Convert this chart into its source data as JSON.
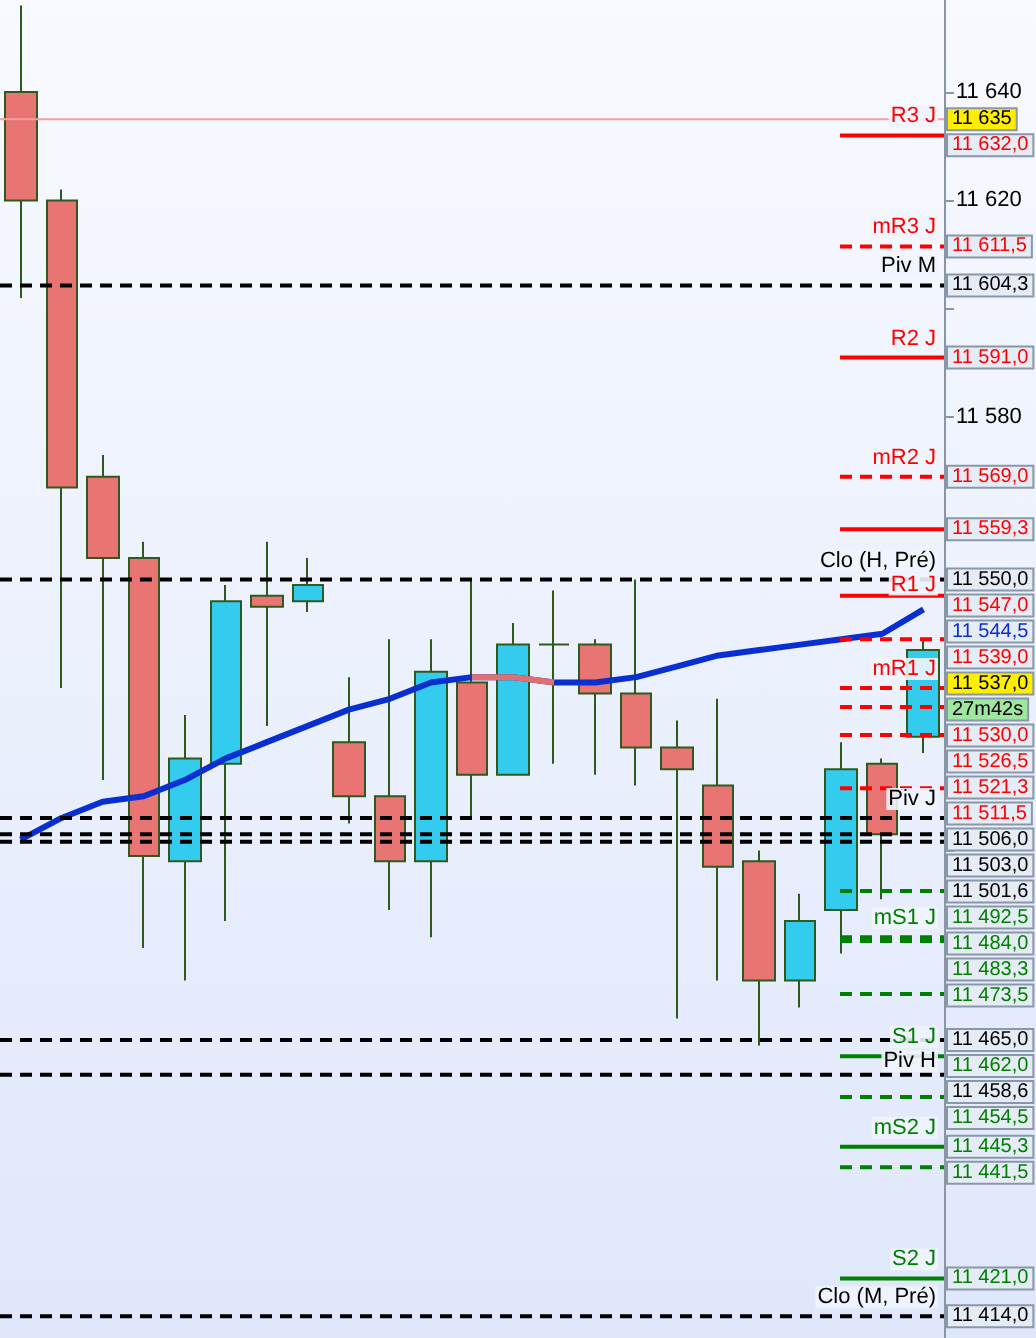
{
  "chart_data": {
    "type": "candlestick",
    "categories": [
      null,
      null,
      null,
      null,
      null,
      null,
      null,
      null,
      null,
      null,
      null,
      null,
      null,
      null,
      null,
      null,
      null,
      null,
      null,
      null,
      null,
      null,
      null
    ],
    "ohlc": [
      [
        11640,
        11656,
        11602,
        11620
      ],
      [
        11620,
        11622,
        11530,
        11567
      ],
      [
        11569,
        11573,
        11513,
        11554
      ],
      [
        11554,
        11557,
        11482,
        11499
      ],
      [
        11498,
        11525,
        11476,
        11517
      ],
      [
        11516,
        11549,
        11487,
        11546
      ],
      [
        11547,
        11557,
        11523,
        11545
      ],
      [
        11546,
        11554,
        11544,
        11549
      ],
      [
        11520,
        11532,
        11505,
        11510
      ],
      [
        11510,
        11539,
        11489,
        11498
      ],
      [
        11498,
        11539,
        11484,
        11533
      ],
      [
        11531,
        11550,
        11506,
        11514
      ],
      [
        11514,
        11542,
        11514,
        11538
      ],
      [
        11538,
        11548,
        11516,
        11538
      ],
      [
        11538,
        11539,
        11514,
        11529
      ],
      [
        11529,
        11550,
        11512,
        11519
      ],
      [
        11519,
        11524,
        11469,
        11515
      ],
      [
        11512,
        11528,
        11476,
        11497
      ],
      [
        11498,
        11500,
        11464,
        11476
      ],
      [
        11476,
        11492,
        11471,
        11487
      ],
      [
        11489,
        11520,
        11481,
        11515
      ],
      [
        11516,
        11517,
        11491,
        11503
      ],
      [
        11521,
        11539,
        11518,
        11537
      ]
    ],
    "colors": [
      "#e87474",
      "#e87474",
      "#e87474",
      "#e87474",
      "#33ccee",
      "#33ccee",
      "#e87474",
      "#33ccee",
      "#e87474",
      "#e87474",
      "#33ccee",
      "#e87474",
      "#33ccee",
      "#2e5a1c",
      "#e87474",
      "#e87474",
      "#e87474",
      "#e87474",
      "#e87474",
      "#33ccee",
      "#33ccee",
      "#e87474",
      "#33ccee"
    ],
    "series": [
      {
        "type": "line",
        "color": "#0a2fd0",
        "values": [
          11502,
          11506,
          11509,
          11510,
          11513,
          11517,
          11520,
          11523,
          11526,
          11528,
          11531,
          11532,
          11532,
          11531,
          11531,
          11532,
          11534,
          11536,
          11537,
          11538,
          11539,
          11540,
          11544.5
        ]
      },
      {
        "type": "line",
        "color": "#e07070",
        "values": [
          null,
          null,
          null,
          null,
          null,
          null,
          null,
          null,
          null,
          null,
          null,
          11532,
          11532,
          11531,
          null,
          null,
          null,
          null,
          null,
          null,
          null,
          null,
          null
        ]
      }
    ],
    "ylim": [
      11410,
      11657
    ],
    "yticks": [
      {
        "value": 11420,
        "label": null
      },
      {
        "value": 11440,
        "label": null
      },
      {
        "value": 11460,
        "label": null
      },
      {
        "value": 11480,
        "label": null
      },
      {
        "value": 11500,
        "label": null
      },
      {
        "value": 11520,
        "label": null
      },
      {
        "value": 11540,
        "label": null
      },
      {
        "value": 11560,
        "label": null
      },
      {
        "value": 11580,
        "label": "11 580"
      },
      {
        "value": 11600,
        "label": null
      },
      {
        "value": 11620,
        "label": "11 620"
      },
      {
        "value": 11640,
        "label": "11 640"
      }
    ],
    "tick_labels": "y",
    "grid": false,
    "marker": "none",
    "ref_lines": [
      {
        "axis": "y",
        "value": 11635,
        "label": null,
        "color": "#f4a0a0",
        "line_style": "solid"
      },
      {
        "axis": "y",
        "value": 11632,
        "label": "R3 J",
        "color": "#ff0000",
        "line_style": "solid"
      },
      {
        "axis": "y",
        "value": 11611.5,
        "label": "mR3 J",
        "color": "#ff0000",
        "line_style": "dashed"
      },
      {
        "axis": "y",
        "value": 11604.3,
        "label": "Piv M",
        "color": "#000000",
        "line_style": "dashed"
      },
      {
        "axis": "y",
        "value": 11591,
        "label": "R2 J",
        "color": "#ff0000",
        "line_style": "solid"
      },
      {
        "axis": "y",
        "value": 11569,
        "label": "mR2 J",
        "color": "#ff0000",
        "line_style": "dashed"
      },
      {
        "axis": "y",
        "value": 11559.3,
        "label": null,
        "color": "#ff0000",
        "line_style": "solid"
      },
      {
        "axis": "y",
        "value": 11550,
        "label": "Clo (H, Pré)",
        "color": "#000000",
        "line_style": "dashed"
      },
      {
        "axis": "y",
        "value": 11547,
        "label": "R1 J",
        "color": "#ff0000",
        "line_style": "solid"
      },
      {
        "axis": "y",
        "value": 11539,
        "label": null,
        "color": "#ff0000",
        "line_style": "dashed"
      },
      {
        "axis": "y",
        "value": 11530,
        "label": "mR1 J",
        "color": "#ff0000",
        "line_style": "dashed"
      },
      {
        "axis": "y",
        "value": 11526.5,
        "label": null,
        "color": "#ff0000",
        "line_style": "dashed"
      },
      {
        "axis": "y",
        "value": 11521.3,
        "label": null,
        "color": "#ff0000",
        "line_style": "dashed"
      },
      {
        "axis": "y",
        "value": 11511.5,
        "label": null,
        "color": "#ff0000",
        "line_style": "dashed"
      },
      {
        "axis": "y",
        "value": 11506,
        "label": "Piv J",
        "color": "#000000",
        "line_style": "dashed"
      },
      {
        "axis": "y",
        "value": 11503,
        "label": null,
        "color": "#000000",
        "line_style": "dashed"
      },
      {
        "axis": "y",
        "value": 11501.6,
        "label": null,
        "color": "#000000",
        "line_style": "dashed"
      },
      {
        "axis": "y",
        "value": 11492.5,
        "label": null,
        "color": "#008000",
        "line_style": "dashed"
      },
      {
        "axis": "y",
        "value": 11484,
        "label": "mS1 J",
        "color": "#008000",
        "line_style": "dashed"
      },
      {
        "axis": "y",
        "value": 11483.3,
        "label": null,
        "color": "#008000",
        "line_style": "dashed"
      },
      {
        "axis": "y",
        "value": 11473.5,
        "label": null,
        "color": "#008000",
        "line_style": "dashed"
      },
      {
        "axis": "y",
        "value": 11465,
        "label": null,
        "color": "#000000",
        "line_style": "dashed"
      },
      {
        "axis": "y",
        "value": 11462,
        "label": "S1 J",
        "color": "#008000",
        "line_style": "solid"
      },
      {
        "axis": "y",
        "value": 11458.6,
        "label": "Piv H",
        "color": "#000000",
        "line_style": "dashed"
      },
      {
        "axis": "y",
        "value": 11454.5,
        "label": null,
        "color": "#008000",
        "line_style": "dashed"
      },
      {
        "axis": "y",
        "value": 11445.3,
        "label": "mS2 J",
        "color": "#008000",
        "line_style": "solid"
      },
      {
        "axis": "y",
        "value": 11441.5,
        "label": null,
        "color": "#008000",
        "line_style": "dashed"
      },
      {
        "axis": "y",
        "value": 11421,
        "label": "S2 J",
        "color": "#008000",
        "line_style": "solid"
      },
      {
        "axis": "y",
        "value": 11414,
        "label": "Clo (M, Pré)",
        "color": "#000000",
        "line_style": "dashed"
      }
    ],
    "annotations": [
      "11 635",
      "11 632,0",
      "11 611,5",
      "11 604,3",
      "11 591,0",
      "11 569,0",
      "11 559,3",
      "11 550,0",
      "11 547,0",
      "11 539,0",
      "11 530,0",
      "11 526,5",
      "11 521,3",
      "11 511,5",
      "11 506,0",
      "11 503,0",
      "11 501,6",
      "11 492,5",
      "11 484,0",
      "11 483,3",
      "11 473,5",
      "11 465,0",
      "11 462,0",
      "11 458,6",
      "11 454,5",
      "11 445,3",
      "11 441,5",
      "11 421,0",
      "11 414,0",
      "11 544,5",
      "11 537,0",
      "27m42s"
    ]
  }
}
